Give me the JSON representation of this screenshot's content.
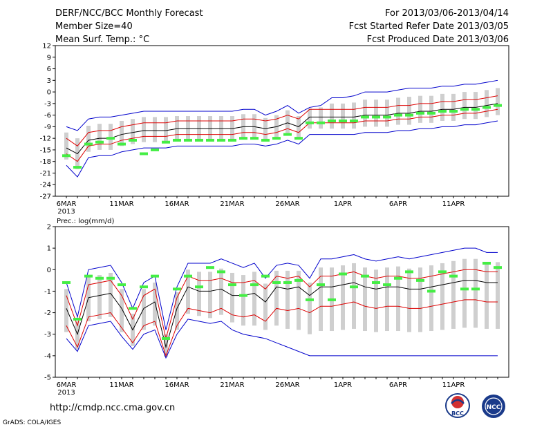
{
  "header": {
    "title": "DERF/NCC/BCC Monthly Forecast",
    "member_size": "Member Size=40",
    "variable": "Mean Surf. Temp.: °C",
    "period": "For 2013/03/06-2013/04/14",
    "started": "Fcst Started Refer Date 2013/03/05",
    "produced": "Fcst Produced Date 2013/03/06"
  },
  "footer": {
    "url": "http://cmdp.ncc.cma.gov.cn",
    "grads": "GrADS: COLA/IGES",
    "logo_bcc": "BCC",
    "logo_ncc": "NCC"
  },
  "colors": {
    "envelope": "#0000cc",
    "ensemble_mean": "#000000",
    "percentiles": "#dd0000",
    "box": "#cfcfcf",
    "observed": "#44ee44"
  },
  "chart_data": [
    {
      "type": "line",
      "title": "Mean Surf. Temp.: °C",
      "x_tick_labels": [
        "6MAR",
        "11MAR",
        "16MAR",
        "21MAR",
        "26MAR",
        "1APR",
        "6APR",
        "11APR"
      ],
      "x_year_label": "2013",
      "y_ticks": [
        "12",
        "9",
        "6",
        "3",
        "0",
        "-3",
        "-6",
        "-9",
        "-12",
        "-15",
        "-18",
        "-21",
        "-24",
        "-27"
      ],
      "ylim": [
        -27,
        12
      ],
      "days": 40,
      "series": [
        {
          "name": "max",
          "values": [
            -9,
            -10,
            -7,
            -6.5,
            -6.5,
            -6,
            -5.5,
            -5,
            -5,
            -5,
            -5,
            -5,
            -5,
            -5,
            -5,
            -5,
            -4.5,
            -4.5,
            -6,
            -5,
            -3.5,
            -5.5,
            -4,
            -3.5,
            -1.5,
            -1.5,
            -1,
            0,
            0,
            0,
            0.5,
            1,
            1,
            1,
            1.5,
            1.5,
            2,
            2,
            2.5,
            3
          ]
        },
        {
          "name": "p90",
          "values": [
            -12,
            -14,
            -10.5,
            -10,
            -10,
            -9,
            -8.5,
            -8,
            -8,
            -8,
            -7.5,
            -7.5,
            -7.5,
            -7.5,
            -7.5,
            -7.5,
            -7,
            -7,
            -7.5,
            -7,
            -6,
            -7,
            -4.5,
            -4.5,
            -4.5,
            -4.5,
            -4.5,
            -4,
            -4,
            -4,
            -3.5,
            -3.5,
            -3,
            -3,
            -2.5,
            -2.5,
            -2,
            -2,
            -1.5,
            -1
          ]
        },
        {
          "name": "mean",
          "values": [
            -14.5,
            -16,
            -12.5,
            -12,
            -12,
            -11,
            -10.5,
            -10,
            -10,
            -10,
            -9.5,
            -9.5,
            -9.5,
            -9.5,
            -9.5,
            -9.5,
            -9,
            -9,
            -9.5,
            -9,
            -8,
            -9,
            -6.5,
            -6.5,
            -6.5,
            -6.5,
            -6.5,
            -6,
            -6,
            -6,
            -5.5,
            -5.5,
            -5,
            -5,
            -4.5,
            -4.5,
            -4,
            -4,
            -3.5,
            -3
          ]
        },
        {
          "name": "p10",
          "values": [
            -16,
            -18,
            -14,
            -13.5,
            -13.5,
            -12.5,
            -12,
            -11.5,
            -11.5,
            -11.5,
            -11,
            -11,
            -11,
            -11,
            -11,
            -11,
            -10.5,
            -10.5,
            -11,
            -10.5,
            -9.5,
            -10.5,
            -8,
            -8,
            -8,
            -8,
            -8,
            -7.5,
            -7.5,
            -7.5,
            -7,
            -7,
            -6.5,
            -6.5,
            -6,
            -6,
            -5.5,
            -5.5,
            -5,
            -4.5
          ]
        },
        {
          "name": "min",
          "values": [
            -19,
            -22,
            -17,
            -16.5,
            -16.5,
            -15.5,
            -15,
            -14.5,
            -14.5,
            -14.5,
            -14,
            -14,
            -14,
            -14,
            -14,
            -14,
            -13.5,
            -13.5,
            -14,
            -13.5,
            -12.5,
            -13.5,
            -11,
            -11,
            -11,
            -11,
            -11,
            -10.5,
            -10.5,
            -10.5,
            -10,
            -10,
            -9.5,
            -9.5,
            -9,
            -9,
            -8.5,
            -8.5,
            -8,
            -7.5
          ]
        },
        {
          "name": "obs",
          "values": [
            -16.5,
            -19.5,
            -13.5,
            -13,
            -12,
            -13.5,
            -12.5,
            -16,
            -15,
            -13,
            -12.5,
            -12.5,
            -12.5,
            -12.5,
            -12.5,
            -12.5,
            -12,
            -12,
            -12.5,
            -12,
            -11,
            -12,
            -8,
            -8,
            -7.5,
            -7.5,
            -7.5,
            -6.5,
            -6.5,
            -6.5,
            -6,
            -6,
            -5.5,
            -5.5,
            -5,
            -5,
            -4.5,
            -4.5,
            -4,
            -3.5
          ]
        }
      ]
    },
    {
      "type": "line",
      "title": "Prec.: log(mm/d)",
      "x_tick_labels": [
        "6MAR",
        "11MAR",
        "16MAR",
        "21MAR",
        "26MAR",
        "1APR",
        "6APR",
        "11APR"
      ],
      "x_year_label": "2013",
      "y_ticks": [
        "2",
        "1",
        "0",
        "-1",
        "-2",
        "-3",
        "-4",
        "-5"
      ],
      "ylim": [
        -5,
        2
      ],
      "days": 40,
      "series": [
        {
          "name": "max",
          "values": [
            -0.6,
            -2.2,
            0,
            0.1,
            0.2,
            -0.6,
            -1.8,
            -0.6,
            -0.3,
            -2.8,
            -0.8,
            0.3,
            0.3,
            0.3,
            0.5,
            0.3,
            0.1,
            0.3,
            -0.4,
            0.2,
            0.3,
            0.2,
            -0.4,
            0.5,
            0.5,
            0.6,
            0.7,
            0.5,
            0.4,
            0.5,
            0.6,
            0.5,
            0.6,
            0.7,
            0.8,
            0.9,
            1,
            1,
            0.8,
            0.8
          ]
        },
        {
          "name": "p90",
          "values": [
            -1.2,
            -2.6,
            -0.7,
            -0.6,
            -0.5,
            -1.2,
            -2.3,
            -1.2,
            -0.9,
            -3.2,
            -1.3,
            -0.3,
            -0.5,
            -0.5,
            -0.4,
            -0.6,
            -0.6,
            -0.5,
            -0.9,
            -0.3,
            -0.4,
            -0.3,
            -0.8,
            -0.3,
            -0.3,
            -0.2,
            -0.1,
            -0.3,
            -0.4,
            -0.3,
            -0.3,
            -0.4,
            -0.4,
            -0.3,
            -0.2,
            -0.1,
            0,
            0,
            -0.1,
            -0.1
          ]
        },
        {
          "name": "mean",
          "values": [
            -1.8,
            -3,
            -1.3,
            -1.2,
            -1.1,
            -1.8,
            -2.8,
            -1.8,
            -1.5,
            -3.6,
            -1.8,
            -0.8,
            -1,
            -1,
            -0.9,
            -1.2,
            -1.2,
            -1.1,
            -1.5,
            -0.8,
            -0.9,
            -0.8,
            -1.2,
            -0.8,
            -0.8,
            -0.7,
            -0.6,
            -0.8,
            -0.9,
            -0.8,
            -0.8,
            -0.9,
            -0.9,
            -0.8,
            -0.7,
            -0.6,
            -0.5,
            -0.5,
            -0.6,
            -0.6
          ]
        },
        {
          "name": "p10",
          "values": [
            -2.6,
            -3.6,
            -2.2,
            -2.1,
            -2,
            -2.7,
            -3.4,
            -2.6,
            -2.4,
            -4,
            -2.6,
            -1.8,
            -1.9,
            -2,
            -1.8,
            -2.1,
            -2.2,
            -2.1,
            -2.4,
            -1.8,
            -1.9,
            -1.8,
            -2,
            -1.7,
            -1.7,
            -1.6,
            -1.5,
            -1.7,
            -1.8,
            -1.7,
            -1.7,
            -1.8,
            -1.8,
            -1.7,
            -1.6,
            -1.5,
            -1.4,
            -1.4,
            -1.5,
            -1.5
          ]
        },
        {
          "name": "min",
          "values": [
            -3.2,
            -3.8,
            -2.6,
            -2.5,
            -2.4,
            -3.1,
            -3.7,
            -3,
            -2.8,
            -4.1,
            -3,
            -2.3,
            -2.4,
            -2.5,
            -2.4,
            -2.8,
            -3,
            -3.1,
            -3.2,
            -3.4,
            -3.6,
            -3.8,
            -4,
            -4,
            -4,
            -4,
            -4,
            -4,
            -4,
            -4,
            -4,
            -4,
            -4,
            -4,
            -4,
            -4,
            -4,
            -4,
            -4,
            -4
          ]
        },
        {
          "name": "obs",
          "values": [
            -0.6,
            -2.3,
            -0.3,
            -0.4,
            -0.4,
            -0.7,
            -1.8,
            -0.8,
            -0.3,
            -3.2,
            -0.9,
            -0.3,
            -0.8,
            0.1,
            -0.1,
            -0.7,
            -1.2,
            -0.7,
            -0.3,
            -0.6,
            -0.6,
            -0.5,
            -1.4,
            -0.7,
            -1.4,
            -0.2,
            -0.8,
            -0.3,
            -0.6,
            -0.7,
            -0.4,
            -0.1,
            -0.5,
            -1,
            -0.1,
            -0.3,
            -0.9,
            -0.9,
            0.3,
            0.1
          ]
        }
      ]
    }
  ]
}
